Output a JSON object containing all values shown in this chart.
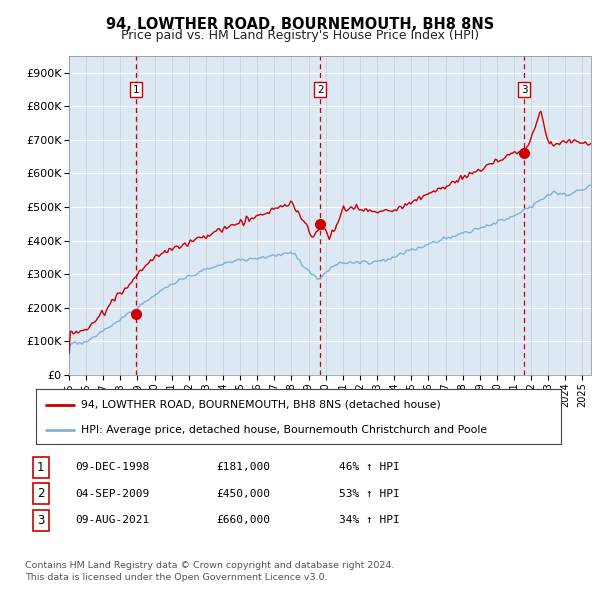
{
  "title": "94, LOWTHER ROAD, BOURNEMOUTH, BH8 8NS",
  "subtitle": "Price paid vs. HM Land Registry's House Price Index (HPI)",
  "title_fontsize": 10.5,
  "subtitle_fontsize": 9,
  "bg_color": "#dce9f5",
  "grid_color": "#cccccc",
  "red_line_color": "#cc0000",
  "blue_line_color": "#7fb3d3",
  "sale_marker_color": "#cc0000",
  "dashed_line_color": "#cc0000",
  "ylim": [
    0,
    950000
  ],
  "yticks": [
    0,
    100000,
    200000,
    300000,
    400000,
    500000,
    600000,
    700000,
    800000,
    900000
  ],
  "ytick_labels": [
    "£0",
    "£100K",
    "£200K",
    "£300K",
    "£400K",
    "£500K",
    "£600K",
    "£700K",
    "£800K",
    "£900K"
  ],
  "sale1_date": 1998.92,
  "sale1_price": 181000,
  "sale2_date": 2009.67,
  "sale2_price": 450000,
  "sale3_date": 2021.6,
  "sale3_price": 660000,
  "legend_line1": "94, LOWTHER ROAD, BOURNEMOUTH, BH8 8NS (detached house)",
  "legend_line2": "HPI: Average price, detached house, Bournemouth Christchurch and Poole",
  "table_rows": [
    [
      "1",
      "09-DEC-1998",
      "£181,000",
      "46% ↑ HPI"
    ],
    [
      "2",
      "04-SEP-2009",
      "£450,000",
      "53% ↑ HPI"
    ],
    [
      "3",
      "09-AUG-2021",
      "£660,000",
      "34% ↑ HPI"
    ]
  ],
  "footer1": "Contains HM Land Registry data © Crown copyright and database right 2024.",
  "footer2": "This data is licensed under the Open Government Licence v3.0."
}
